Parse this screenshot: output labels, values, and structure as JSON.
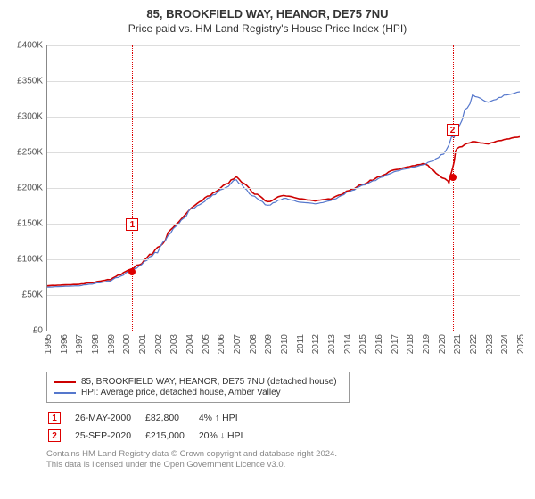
{
  "title_line1": "85, BROOKFIELD WAY, HEANOR, DE75 7NU",
  "title_line2": "Price paid vs. HM Land Registry's House Price Index (HPI)",
  "chart": {
    "type": "line",
    "background_color": "#ffffff",
    "grid_color": "#dddddd",
    "y_axis": {
      "min": 0,
      "max": 400000,
      "tick_step": 50000,
      "tick_labels": [
        "£0",
        "£50K",
        "£100K",
        "£150K",
        "£200K",
        "£250K",
        "£300K",
        "£350K",
        "£400K"
      ]
    },
    "x_axis": {
      "min": 1995,
      "max": 2025,
      "tick_years": [
        1995,
        1996,
        1997,
        1998,
        1999,
        2000,
        2001,
        2002,
        2003,
        2004,
        2005,
        2006,
        2007,
        2008,
        2009,
        2010,
        2011,
        2012,
        2013,
        2014,
        2015,
        2016,
        2017,
        2018,
        2019,
        2020,
        2021,
        2022,
        2023,
        2024,
        2025
      ]
    },
    "series": [
      {
        "name": "price_paid",
        "color": "#cc0000",
        "width": 1.6,
        "data": [
          [
            1995,
            63000
          ],
          [
            1996,
            64000
          ],
          [
            1997,
            65000
          ],
          [
            1998,
            68000
          ],
          [
            1999,
            72000
          ],
          [
            2000,
            82800
          ],
          [
            2001,
            95000
          ],
          [
            2002,
            115000
          ],
          [
            2003,
            145000
          ],
          [
            2004,
            170000
          ],
          [
            2005,
            185000
          ],
          [
            2006,
            200000
          ],
          [
            2007,
            215000
          ],
          [
            2008,
            195000
          ],
          [
            2009,
            180000
          ],
          [
            2010,
            190000
          ],
          [
            2011,
            185000
          ],
          [
            2012,
            182000
          ],
          [
            2013,
            185000
          ],
          [
            2014,
            195000
          ],
          [
            2015,
            205000
          ],
          [
            2016,
            215000
          ],
          [
            2017,
            225000
          ],
          [
            2018,
            230000
          ],
          [
            2019,
            235000
          ],
          [
            2020,
            215000
          ],
          [
            2020.5,
            210000
          ],
          [
            2021,
            255000
          ],
          [
            2022,
            265000
          ],
          [
            2023,
            262000
          ],
          [
            2024,
            268000
          ],
          [
            2025,
            272000
          ]
        ]
      },
      {
        "name": "hpi",
        "color": "#5577cc",
        "width": 1.2,
        "data": [
          [
            1995,
            61000
          ],
          [
            1996,
            62000
          ],
          [
            1997,
            63000
          ],
          [
            1998,
            66000
          ],
          [
            1999,
            70000
          ],
          [
            2000,
            80000
          ],
          [
            2001,
            92000
          ],
          [
            2002,
            112000
          ],
          [
            2003,
            142000
          ],
          [
            2004,
            168000
          ],
          [
            2005,
            182000
          ],
          [
            2006,
            196000
          ],
          [
            2007,
            212000
          ],
          [
            2008,
            190000
          ],
          [
            2009,
            175000
          ],
          [
            2010,
            186000
          ],
          [
            2011,
            180000
          ],
          [
            2012,
            178000
          ],
          [
            2013,
            182000
          ],
          [
            2014,
            193000
          ],
          [
            2015,
            203000
          ],
          [
            2016,
            213000
          ],
          [
            2017,
            223000
          ],
          [
            2018,
            228000
          ],
          [
            2019,
            233000
          ],
          [
            2020,
            245000
          ],
          [
            2021,
            280000
          ],
          [
            2022,
            330000
          ],
          [
            2023,
            320000
          ],
          [
            2024,
            330000
          ],
          [
            2025,
            335000
          ]
        ]
      }
    ],
    "markers": [
      {
        "id": "1",
        "year": 2000.4,
        "value": 82800
      },
      {
        "id": "2",
        "year": 2020.73,
        "value": 215000
      }
    ]
  },
  "legend": {
    "items": [
      {
        "color": "#cc0000",
        "label": "85, BROOKFIELD WAY, HEANOR, DE75 7NU (detached house)"
      },
      {
        "color": "#5577cc",
        "label": "HPI: Average price, detached house, Amber Valley"
      }
    ]
  },
  "annotations": [
    {
      "id": "1",
      "date": "26-MAY-2000",
      "price": "£82,800",
      "delta": "4% ↑ HPI"
    },
    {
      "id": "2",
      "date": "25-SEP-2020",
      "price": "£215,000",
      "delta": "20% ↓ HPI"
    }
  ],
  "license_line1": "Contains HM Land Registry data © Crown copyright and database right 2024.",
  "license_line2": "This data is licensed under the Open Government Licence v3.0."
}
